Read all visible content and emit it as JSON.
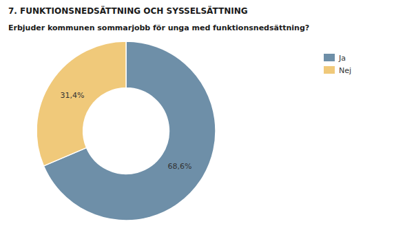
{
  "chart_data": {
    "type": "pie",
    "title": "7. FUNKTIONSNEDSÄTTNING OCH SYSSELSÄTTNING",
    "subtitle": "Erbjuder kommunen sommarjobb för unga med funktionsnedsättning?",
    "categories": [
      "Ja",
      "Nej"
    ],
    "values": [
      68.6,
      31.4
    ],
    "value_labels": [
      "68,6%",
      "31,4%"
    ],
    "colors": [
      "#6e8fa8",
      "#f0c97a"
    ],
    "data_labels": true,
    "legend": "upper right"
  }
}
